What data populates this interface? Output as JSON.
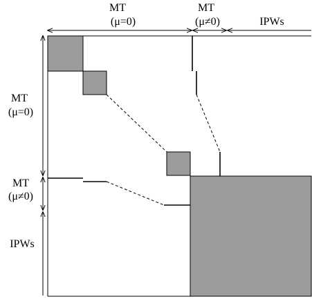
{
  "labels": {
    "top_mt0_line1": "MT",
    "top_mt0_line2": "(μ=0)",
    "top_mtn0_line1": "MT",
    "top_mtn0_line2": "(μ≠0)",
    "top_ipws": "IPWs",
    "left_mt0_line1": "MT",
    "left_mt0_line2": "(μ=0)",
    "left_mtn0_line1": "MT",
    "left_mtn0_line2": "(μ≠0)",
    "left_ipws": "IPWs"
  },
  "colors": {
    "block_fill": "#9b9b9b",
    "stroke": "#000000",
    "background": "#ffffff"
  }
}
